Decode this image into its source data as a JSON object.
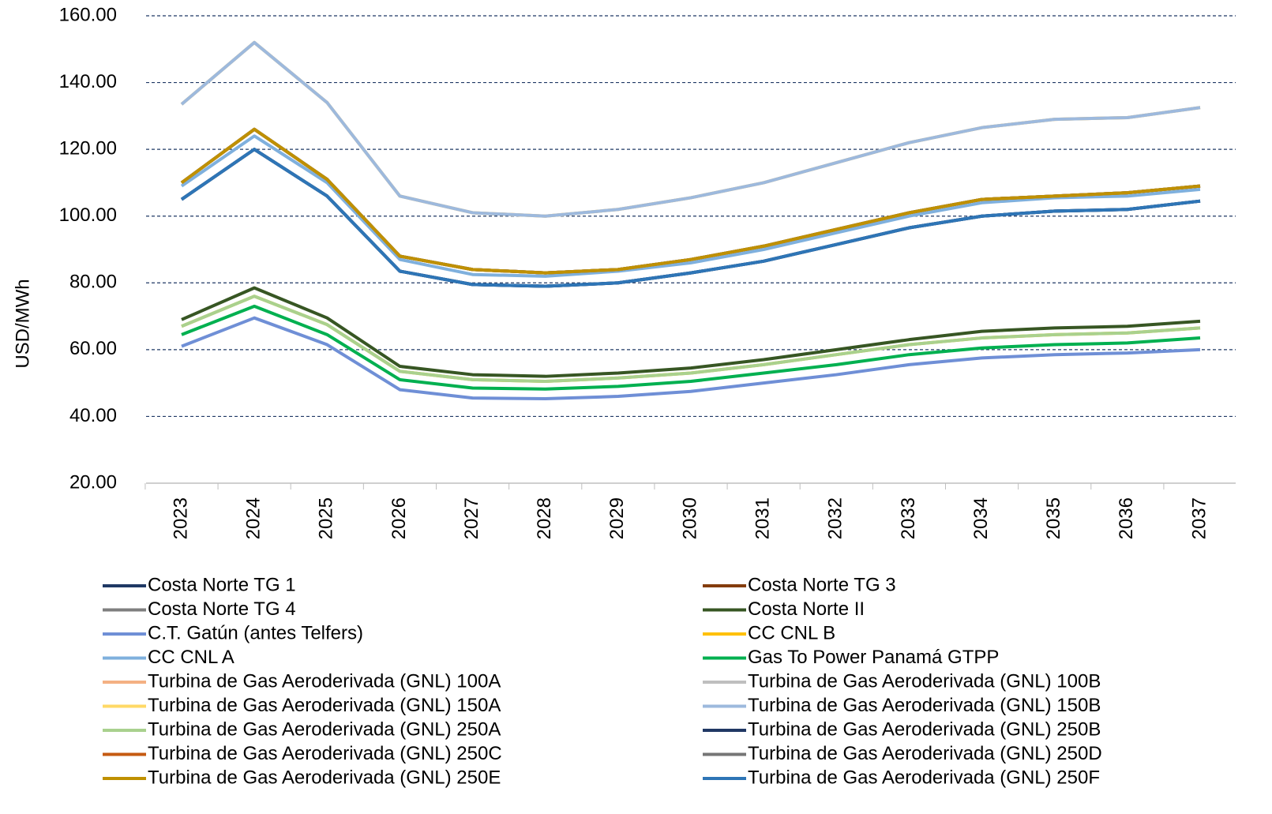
{
  "chart_data": {
    "type": "line",
    "y_label": "USD/MWh",
    "x": [
      "2023",
      "2024",
      "2025",
      "2026",
      "2027",
      "2028",
      "2029",
      "2030",
      "2031",
      "2032",
      "2033",
      "2034",
      "2035",
      "2036",
      "2037"
    ],
    "ylim": [
      20,
      160
    ],
    "yticks": [
      {
        "value": 20,
        "label": "20.00"
      },
      {
        "value": 40,
        "label": "40.00"
      },
      {
        "value": 60,
        "label": "60.00"
      },
      {
        "value": 80,
        "label": "80.00"
      },
      {
        "value": 100,
        "label": "100.00"
      },
      {
        "value": 120,
        "label": "120.00"
      },
      {
        "value": 140,
        "label": "140.00"
      },
      {
        "value": 160,
        "label": "160.00"
      }
    ],
    "grid": true,
    "legend": "bottom",
    "series": [
      {
        "name": "Costa Norte TG 1",
        "color": "#1f3864",
        "values": [
          105,
          120,
          106,
          83.5,
          79.5,
          79,
          80,
          83,
          86.5,
          91.5,
          96.5,
          100,
          101.5,
          102,
          104.5
        ]
      },
      {
        "name": "Costa Norte TG 3",
        "color": "#843c0c",
        "values": [
          110,
          126,
          111,
          88,
          84,
          83,
          84,
          87,
          91,
          96,
          101,
          105,
          106,
          107,
          109
        ]
      },
      {
        "name": "Costa Norte TG 4",
        "color": "#7f7f7f",
        "values": [
          110,
          126,
          111,
          88,
          84,
          83,
          84,
          87,
          91,
          96,
          101,
          105,
          106,
          107,
          109
        ]
      },
      {
        "name": "Costa Norte II",
        "color": "#375623",
        "values": [
          69,
          78.5,
          69.5,
          55,
          52.5,
          52,
          53,
          54.5,
          57,
          60,
          63,
          65.5,
          66.5,
          67,
          68.5
        ]
      },
      {
        "name": "C.T. Gatún (antes Telfers)",
        "color": "#6f8fd6",
        "values": [
          61,
          69.5,
          61.5,
          48,
          45.5,
          45.3,
          46,
          47.5,
          50,
          52.5,
          55.5,
          57.5,
          58.5,
          59,
          60
        ]
      },
      {
        "name": "CC CNL B",
        "color": "#ffc000",
        "values": [
          67,
          76,
          67.5,
          53.5,
          51,
          50.5,
          51.5,
          53,
          55.5,
          58.5,
          61.5,
          63.5,
          64.5,
          65,
          66.5
        ]
      },
      {
        "name": "CC CNL A",
        "color": "#7fb0dd",
        "values": [
          109,
          124,
          110,
          87,
          82.5,
          82,
          83.5,
          86,
          90,
          95,
          100,
          104,
          105.5,
          106,
          108
        ]
      },
      {
        "name": "Gas To Power Panamá GTPP",
        "color": "#00b050",
        "values": [
          64.5,
          73,
          64.5,
          51,
          48.5,
          48.2,
          49,
          50.5,
          53,
          55.5,
          58.5,
          60.5,
          61.5,
          62,
          63.5
        ]
      },
      {
        "name": "Turbina de Gas Aeroderivada (GNL) 100A",
        "color": "#f4b183",
        "values": [
          133.5,
          152,
          134,
          106,
          101,
          100,
          102,
          105.5,
          110,
          116,
          122,
          126.5,
          129,
          129.5,
          132.5
        ]
      },
      {
        "name": "Turbina de Gas Aeroderivada (GNL) 100B",
        "color": "#bfbfbf",
        "values": [
          110,
          126,
          111,
          88,
          84,
          83,
          84,
          87,
          91,
          96,
          101,
          105,
          106,
          107,
          109
        ]
      },
      {
        "name": "Turbina de Gas Aeroderivada (GNL) 150A",
        "color": "#ffd966",
        "values": [
          133.5,
          152,
          134,
          106,
          101,
          100,
          102,
          105.5,
          110,
          116,
          122,
          126.5,
          129,
          129.5,
          132.5
        ]
      },
      {
        "name": "Turbina de Gas Aeroderivada (GNL) 150B",
        "color": "#9db9dd",
        "values": [
          133.5,
          152,
          134,
          106,
          101,
          100,
          102,
          105.5,
          110,
          116,
          122,
          126.5,
          129,
          129.5,
          132.5
        ]
      },
      {
        "name": "Turbina de Gas Aeroderivada (GNL) 250A",
        "color": "#a9d18e",
        "values": [
          67,
          76,
          67.5,
          53.5,
          51,
          50.5,
          51.5,
          53,
          55.5,
          58.5,
          61.5,
          63.5,
          64.5,
          65,
          66.5
        ]
      },
      {
        "name": "Turbina de Gas Aeroderivada (GNL) 250B",
        "color": "#203864",
        "values": [
          105,
          120,
          106,
          83.5,
          79.5,
          79,
          80,
          83,
          86.5,
          91.5,
          96.5,
          100,
          101.5,
          102,
          104.5
        ]
      },
      {
        "name": "Turbina de Gas Aeroderivada (GNL) 250C",
        "color": "#c55a11",
        "values": [
          110,
          126,
          111,
          88,
          84,
          83,
          84,
          87,
          91,
          96,
          101,
          105,
          106,
          107,
          109
        ]
      },
      {
        "name": "Turbina de Gas Aeroderivada (GNL) 250D",
        "color": "#757575",
        "values": [
          110,
          126,
          111,
          88,
          84,
          83,
          84,
          87,
          91,
          96,
          101,
          105,
          106,
          107,
          109
        ]
      },
      {
        "name": "Turbina de Gas Aeroderivada (GNL) 250E",
        "color": "#bf9000",
        "values": [
          110,
          126,
          111,
          88,
          84,
          83,
          84,
          87,
          91,
          96,
          101,
          105,
          106,
          107,
          109
        ]
      },
      {
        "name": "Turbina de Gas Aeroderivada (GNL) 250F",
        "color": "#2e75b6",
        "values": [
          105,
          120,
          106,
          83.5,
          79.5,
          79,
          80,
          83,
          86.5,
          91.5,
          96.5,
          100,
          101.5,
          102,
          104.5
        ]
      }
    ]
  }
}
